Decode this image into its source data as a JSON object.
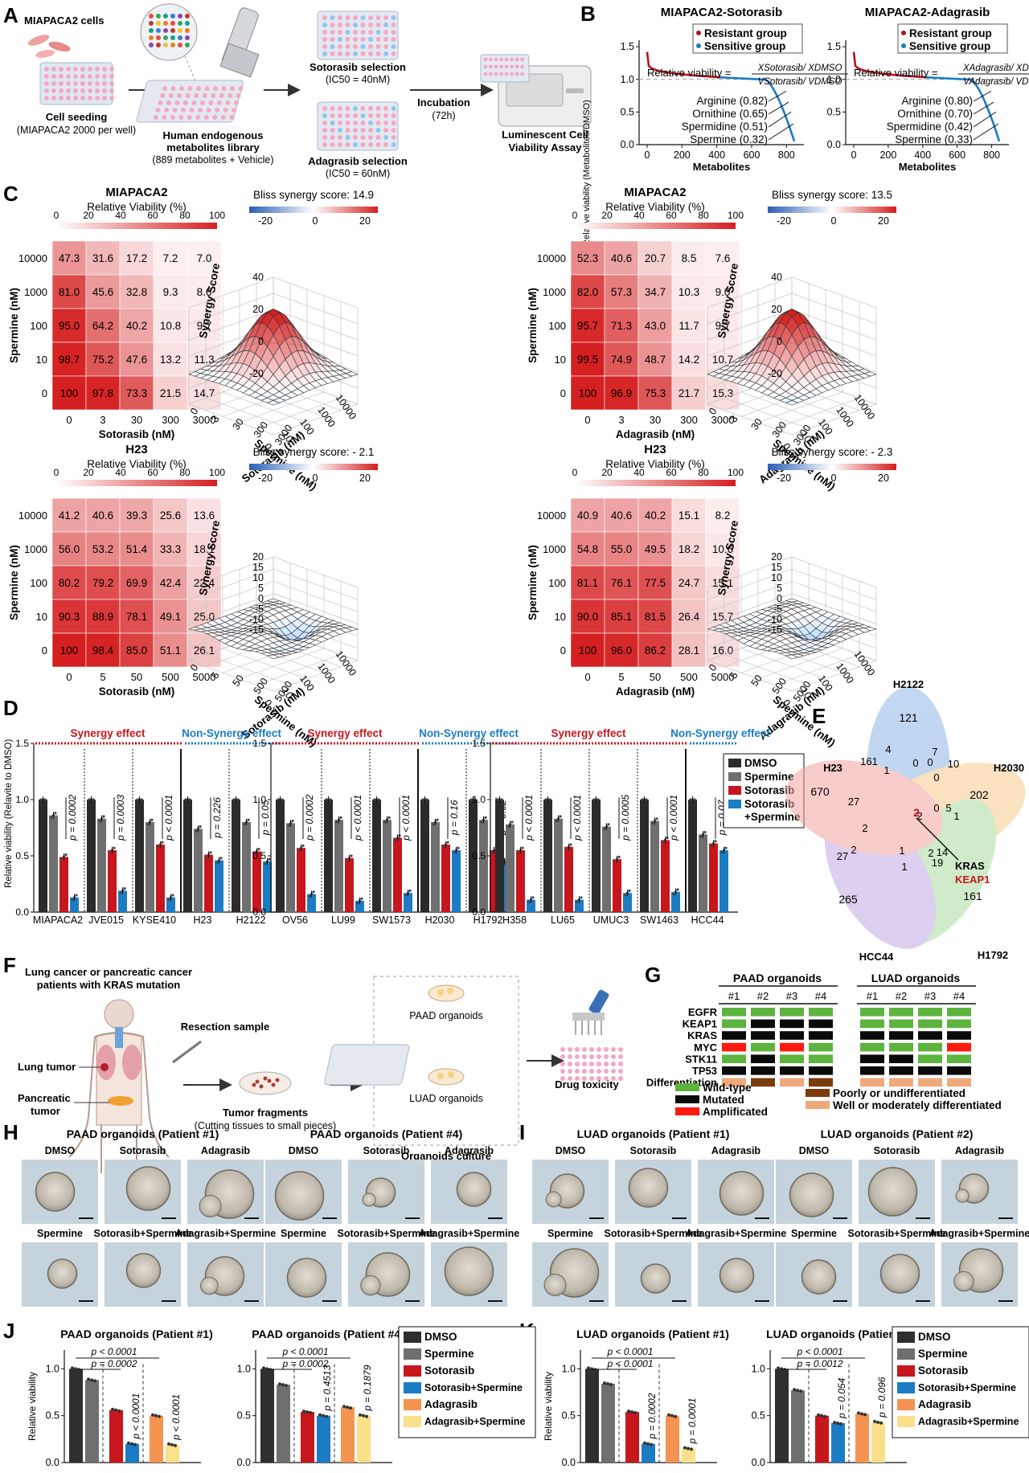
{
  "panels": {
    "A": {
      "letter": "A",
      "cells_label": "MIAPACA2 cells",
      "seeding_title": "Cell seeding",
      "seeding_sub": "(MIAPACA2 2000 per well)",
      "library_title_1": "Human endogenous",
      "library_title_2": "metabolites library",
      "library_sub": "(889 metabolites + Vehicle)",
      "soto_sel": "Sotorasib selection",
      "soto_ic50": "(IC50 = 40nM)",
      "adag_sel": "Adagrasib selection",
      "adag_ic50": "(IC50 = 60nM)",
      "incubation": "Incubation",
      "incubation_time": "(72h)",
      "assay_1": "Luminescent Cell",
      "assay_2": "Viability Assay"
    },
    "B": {
      "letter": "B",
      "ylabel": "Relative viability (Metabolites/DMSO)",
      "charts": [
        {
          "title": "MIAPACA2-Sotorasib",
          "drug": "Sotorasib",
          "labels": [
            "Arginine (0.82)",
            "Ornithine (0.65)",
            "Spermidine (0.51)",
            "Spermine (0.32)"
          ]
        },
        {
          "title": "MIAPACA2-Adagrasib",
          "drug": "Adagrasib",
          "labels": [
            "Arginine (0.80)",
            "Ornithine (0.70)",
            "Spermidine (0.42)",
            "Spermine (0.33)"
          ]
        }
      ],
      "legend": [
        "Resistant group",
        "Sensitive group"
      ],
      "formula_prefix": "Relative viability =",
      "xlabel": "Metabolites",
      "xticks": [
        "0",
        "200",
        "400",
        "600",
        "800"
      ],
      "yticks": [
        "0.0",
        "0.5",
        "1.0",
        "1.5"
      ]
    },
    "C": {
      "letter": "C",
      "spermine_label": "Spermine (nM)",
      "synergy_label": "Synergy Score",
      "viability_scale_label": "Relative Viability (%)",
      "viability_ticks": [
        "0",
        "20",
        "40",
        "60",
        "80",
        "100"
      ],
      "bliss_ticks": [
        "-20",
        "0",
        "20"
      ],
      "blocks": [
        {
          "cell": "MIAPACA2",
          "drug": "Sotorasib",
          "xlabel": "Sotorasib (nM)",
          "bliss": "Bliss synergy score: 14.9",
          "rows": [
            "10000",
            "1000",
            "100",
            "10",
            "0"
          ],
          "cols": [
            "0",
            "3",
            "30",
            "300",
            "3000"
          ],
          "values": [
            [
              "47.3",
              "31.6",
              "17.2",
              "7.2",
              "7.0"
            ],
            [
              "81.0",
              "45.6",
              "32.8",
              "9.3",
              "8.6"
            ],
            [
              "95.0",
              "64.2",
              "40.2",
              "10.8",
              "9.7"
            ],
            [
              "98.7",
              "75.2",
              "47.6",
              "13.2",
              "11.3"
            ],
            [
              "100",
              "97.8",
              "73.3",
              "21.5",
              "14.7"
            ]
          ],
          "zticks": [
            "40",
            "20",
            "0",
            "-20"
          ],
          "drug_ticks": [
            "0",
            "3",
            "30",
            "300",
            "3000"
          ],
          "sp_ticks": [
            "10000",
            "1000",
            "100",
            "10",
            "0"
          ]
        },
        {
          "cell": "MIAPACA2",
          "drug": "Adagrasib",
          "xlabel": "Adagrasib (nM)",
          "bliss": "Bliss synergy score: 13.5",
          "rows": [
            "10000",
            "1000",
            "100",
            "10",
            "0"
          ],
          "cols": [
            "0",
            "3",
            "30",
            "300",
            "3000"
          ],
          "values": [
            [
              "52.3",
              "40.6",
              "20.7",
              "8.5",
              "7.6"
            ],
            [
              "82.0",
              "57.3",
              "34.7",
              "10.3",
              "9.0"
            ],
            [
              "95.7",
              "71.3",
              "43.0",
              "11.7",
              "9.7"
            ],
            [
              "99.5",
              "74.9",
              "48.7",
              "14.2",
              "10.7"
            ],
            [
              "100",
              "96.9",
              "75.3",
              "21.7",
              "15.3"
            ]
          ],
          "zticks": [
            "40",
            "20",
            "0",
            "-20"
          ],
          "drug_ticks": [
            "0",
            "3",
            "30",
            "300",
            "3000"
          ],
          "sp_ticks": [
            "10000",
            "1000",
            "100",
            "10",
            "0"
          ]
        },
        {
          "cell": "H23",
          "drug": "Sotorasib",
          "xlabel": "Sotorasib (nM)",
          "bliss": "Bliss synergy score: - 2.1",
          "rows": [
            "10000",
            "1000",
            "100",
            "10",
            "0"
          ],
          "cols": [
            "0",
            "5",
            "50",
            "500",
            "5000"
          ],
          "values": [
            [
              "41.2",
              "40.6",
              "39.3",
              "25.6",
              "13.6"
            ],
            [
              "56.0",
              "53.2",
              "51.4",
              "33.3",
              "18.1"
            ],
            [
              "80.2",
              "79.2",
              "69.9",
              "42.4",
              "22.4"
            ],
            [
              "90.3",
              "88.9",
              "78.1",
              "49.1",
              "25.0"
            ],
            [
              "100",
              "98.4",
              "85.0",
              "51.1",
              "26.1"
            ]
          ],
          "zticks": [
            "20",
            "15",
            "10",
            "5",
            "0",
            "-5",
            "-10",
            "-15"
          ],
          "drug_ticks": [
            "0",
            "5",
            "50",
            "500",
            "5000"
          ],
          "sp_ticks": [
            "10000",
            "1000",
            "100",
            "10",
            "0"
          ]
        },
        {
          "cell": "H23",
          "drug": "Adagrasib",
          "xlabel": "Adagrasib (nM)",
          "bliss": "Bliss synergy score: - 2.3",
          "rows": [
            "10000",
            "1000",
            "100",
            "10",
            "0"
          ],
          "cols": [
            "0",
            "5",
            "50",
            "500",
            "5000"
          ],
          "values": [
            [
              "40.9",
              "40.6",
              "40.2",
              "15.1",
              "8.2"
            ],
            [
              "54.8",
              "55.0",
              "49.5",
              "18.2",
              "10.6"
            ],
            [
              "81.1",
              "76.1",
              "77.5",
              "24.7",
              "15.1"
            ],
            [
              "90.0",
              "85.1",
              "81.5",
              "26.4",
              "15.7"
            ],
            [
              "100",
              "96.0",
              "86.2",
              "28.1",
              "16.0"
            ]
          ],
          "zticks": [
            "20",
            "15",
            "10",
            "5",
            "0",
            "-5",
            "-10",
            "-15"
          ],
          "drug_ticks": [
            "0",
            "5",
            "50",
            "500",
            "5000"
          ],
          "sp_ticks": [
            "10000",
            "1000",
            "100",
            "10",
            "0"
          ]
        }
      ]
    },
    "D": {
      "letter": "D",
      "ylabel": "Relative viability (Relavite to DMSO)",
      "synergy": "Synergy effect",
      "nonsynergy": "Non-Synergy effect",
      "legend": [
        "DMSO",
        "Spermine",
        "Sotorasib",
        "Sotorasib",
        "+Spermine"
      ]
    },
    "E": {
      "letter": "E",
      "sets": [
        "H2122",
        "H2030",
        "H1792",
        "HCC44",
        "H23"
      ],
      "numbers": [
        "121",
        "202",
        "161",
        "265",
        "670",
        "4",
        "7",
        "0",
        "10",
        "0",
        "161",
        "1",
        "0",
        "0",
        "2",
        "1",
        "5",
        "14",
        "2",
        "19",
        "1",
        "1",
        "27",
        "2",
        "27",
        "2"
      ],
      "kras": "KRAS",
      "keap1": "KEAP1"
    },
    "F": {
      "letter": "F",
      "patients_1": "Lung cancer  or pancreatic cancer",
      "patients_2": "patients with KRAS mutation",
      "resection": "Resection sample",
      "lung_tumor": "Lung tumor",
      "panc_1": "Pancreatic",
      "panc_2": "tumor",
      "fragments_1": "Tumor fragments",
      "fragments_2": "(Cutting tissues to small pieces)",
      "paad": "PAAD organoids",
      "luad": "LUAD organoids",
      "culture": "Organoids culture",
      "toxicity": "Drug toxicity"
    },
    "G": {
      "letter": "G",
      "groups": [
        "PAAD organoids",
        "LUAD organoids"
      ],
      "cols": [
        "#1",
        "#2",
        "#3",
        "#4"
      ],
      "rows": [
        "EGFR",
        "KEAP1",
        "KRAS",
        "MYC",
        "STK11",
        "TP53",
        "Differentiation"
      ],
      "legend": [
        "Wild-type",
        "Mutated",
        "Amplificated",
        "Poorly or undifferentiated",
        "Well or moderately differentiated"
      ],
      "colors": {
        "wt": "#5cb43f",
        "mut": "#0a0a0a",
        "amp": "#ff1a0e",
        "poor": "#7a3b0e",
        "well": "#f0a97a"
      },
      "paad": [
        [
          "wt",
          "wt",
          "wt",
          "wt"
        ],
        [
          "wt",
          "mut",
          "mut",
          "mut"
        ],
        [
          "mut",
          "mut",
          "mut",
          "mut"
        ],
        [
          "amp",
          "wt",
          "amp",
          "wt"
        ],
        [
          "wt",
          "mut",
          "wt",
          "wt"
        ],
        [
          "mut",
          "mut",
          "mut",
          "mut"
        ],
        [
          "well",
          "poor",
          "well",
          "poor"
        ]
      ],
      "luad": [
        [
          "wt",
          "wt",
          "wt",
          "wt"
        ],
        [
          "wt",
          "wt",
          "wt",
          "wt"
        ],
        [
          "mut",
          "mut",
          "mut",
          "mut"
        ],
        [
          "wt",
          "wt",
          "wt",
          "amp"
        ],
        [
          "mut",
          "mut",
          "wt",
          "wt"
        ],
        [
          "mut",
          "mut",
          "mut",
          "mut"
        ],
        [
          "well",
          "well",
          "well",
          "well"
        ]
      ]
    },
    "H": {
      "letter": "H",
      "titles": [
        "PAAD organoids (Patient #1)",
        "PAAD organoids (Patient #4)"
      ]
    },
    "I": {
      "letter": "I",
      "titles": [
        "LUAD organoids (Patient #1)",
        "LUAD organoids (Patient #2)"
      ]
    },
    "HI_labels": {
      "top": [
        "DMSO",
        "Sotorasib",
        "Adagrasib"
      ],
      "bottom": [
        "Spermine",
        "Sotorasib+Spermine",
        "Adagrasib+Spermine"
      ]
    },
    "J": {
      "letter": "J"
    },
    "K": {
      "letter": "K"
    },
    "JK": {
      "ylabel": "Relative viability",
      "yticks": [
        "0.0",
        "0.5",
        "1.0"
      ],
      "legend": [
        "DMSO",
        "Spermine",
        "Sotorasib",
        "Sotorasib+Spermine",
        "Adagrasib",
        "Adagrasib+Spermine"
      ]
    }
  },
  "chart_data": [
    {
      "panel": "D",
      "type": "bar",
      "ylim": [
        0,
        1.5
      ],
      "yticks": [
        0.0,
        0.5,
        1.0,
        1.5
      ],
      "series_names": [
        "DMSO",
        "Spermine",
        "Sotorasib",
        "Sotorasib+Spermine"
      ],
      "series_colors": [
        "#2b2b2b",
        "#6f6f6f",
        "#c8161d",
        "#1b7cc4"
      ],
      "groups": [
        {
          "categories": [
            "MIAPACA2",
            "JVE015",
            "KYSE410",
            "H23",
            "H2122"
          ],
          "synergy_count": 3,
          "values": [
            [
              1.0,
              0.86,
              0.49,
              0.13
            ],
            [
              1.0,
              0.83,
              0.55,
              0.19
            ],
            [
              1.0,
              0.8,
              0.6,
              0.13
            ],
            [
              1.0,
              0.74,
              0.51,
              0.46
            ],
            [
              1.0,
              0.8,
              0.54,
              0.45
            ]
          ],
          "p": [
            "p = 0.0002",
            "p = 0.0003",
            "p < 0.0001",
            "p = 0.226",
            "p = 0.05"
          ]
        },
        {
          "categories": [
            "OV56",
            "LU99",
            "SW1573",
            "H2030",
            "H1792"
          ],
          "synergy_count": 3,
          "values": [
            [
              1.0,
              0.79,
              0.57,
              0.16
            ],
            [
              1.0,
              0.82,
              0.48,
              0.1
            ],
            [
              1.0,
              0.82,
              0.66,
              0.17
            ],
            [
              1.0,
              0.8,
              0.6,
              0.55
            ],
            [
              1.0,
              0.82,
              0.55,
              0.45
            ]
          ],
          "p": [
            "p = 0.0002",
            "p < 0.0001",
            "p < 0.0001",
            "p = 0.16",
            "p = 0.02"
          ]
        },
        {
          "categories": [
            "H358",
            "LU65",
            "UMUC3",
            "SW1463",
            "HCC44"
          ],
          "synergy_count": 4,
          "values": [
            [
              1.0,
              0.78,
              0.55,
              0.11
            ],
            [
              1.0,
              0.83,
              0.58,
              0.11
            ],
            [
              1.0,
              0.76,
              0.47,
              0.17
            ],
            [
              1.0,
              0.81,
              0.64,
              0.18
            ],
            [
              1.0,
              0.69,
              0.61,
              0.55
            ]
          ],
          "p": [
            "p < 0.0001",
            "p < 0.0001",
            "p = 0.0005",
            "p < 0.0001",
            "p = 0.07"
          ]
        }
      ]
    },
    {
      "panel": "J-K",
      "type": "bar",
      "ylim": [
        0,
        1.2
      ],
      "series_names": [
        "DMSO",
        "Spermine",
        "Sotorasib",
        "Sotorasib+Spermine",
        "Adagrasib",
        "Adagrasib+Spermine"
      ],
      "series_colors": [
        "#2f2f2f",
        "#6f6f6f",
        "#c8161d",
        "#1b7cc4",
        "#f59451",
        "#fbe08a"
      ],
      "plots": [
        {
          "title": "PAAD organoids (Patient #1)",
          "values": [
            1.0,
            0.88,
            0.56,
            0.2,
            0.5,
            0.19
          ],
          "p12": [
            "p < 0.0001",
            "p = 0.0002"
          ],
          "p_soto": "p < 0.0001",
          "p_adag": "p < 0.0001"
        },
        {
          "title": "PAAD organoids (Patient #4)",
          "values": [
            1.0,
            0.83,
            0.54,
            0.5,
            0.59,
            0.5
          ],
          "p12": [
            "p < 0.0001",
            "p = 0.0002"
          ],
          "p_soto": "p = 0.4513",
          "p_adag": "p = 0.1879"
        },
        {
          "title": "LUAD organoids (Patient #1)",
          "values": [
            1.0,
            0.84,
            0.54,
            0.2,
            0.5,
            0.15
          ],
          "p12": [
            "p < 0.0001",
            "p < 0.0001"
          ],
          "p_soto": "p = 0.0002",
          "p_adag": "p = 0.0001"
        },
        {
          "title": "LUAD organoids (Patient #2)",
          "values": [
            1.0,
            0.77,
            0.5,
            0.42,
            0.52,
            0.43
          ],
          "p12": [
            "p < 0.0001",
            "p = 0.0012"
          ],
          "p_soto": "p = 0.054",
          "p_adag": "p = 0.096"
        }
      ]
    }
  ]
}
